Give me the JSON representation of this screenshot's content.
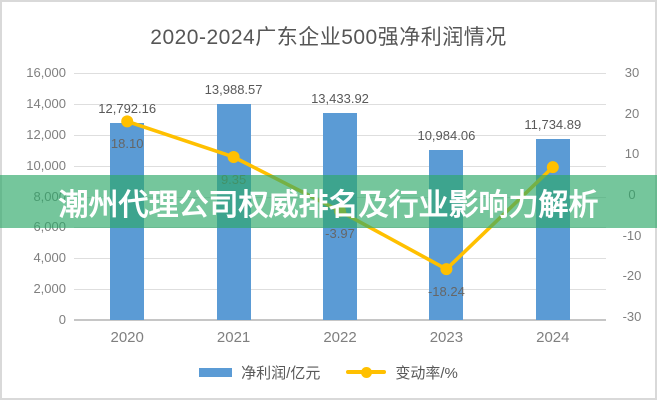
{
  "title": "2020-2024广东企业500强净利润情况",
  "banner": {
    "text": "潮州代理公司权威排名及行业影响力解析",
    "bg_color": "#2EA868",
    "bg_alpha": 0.66,
    "text_color": "#FFFFFF"
  },
  "legend": {
    "bar_label": "净利润/亿元",
    "line_label": "变动率/%"
  },
  "colors": {
    "bar": "#5B9BD5",
    "line": "#FFC000",
    "grid": "#DEDEDE",
    "axis_line": "#C6C6C6",
    "tick_label": "#7F7F7F",
    "value_label": "#595959",
    "title": "#565656"
  },
  "chart_data": {
    "type": "bar",
    "title": "2020-2024广东企业500强净利润情况",
    "categories": [
      "2020",
      "2021",
      "2022",
      "2023",
      "2024"
    ],
    "series": [
      {
        "name": "净利润/亿元",
        "type": "bar",
        "axis": "left",
        "color": "#5B9BD5",
        "values": [
          12792.16,
          13988.57,
          13433.92,
          10984.06,
          11734.89
        ],
        "labels": [
          "12,792.16",
          "13,988.57",
          "13,433.92",
          "10,984.06",
          "11,734.89"
        ]
      },
      {
        "name": "变动率/%",
        "type": "line",
        "axis": "right",
        "color": "#FFC000",
        "values": [
          18.1,
          9.35,
          -3.97,
          -18.24,
          6.84
        ],
        "labels": [
          "18.10",
          "9.35",
          "-3.97",
          "-18.24",
          ""
        ]
      }
    ],
    "left_axis": {
      "min": 0,
      "max": 16000,
      "step": 2000,
      "tick_labels": [
        "16,000",
        "14,000",
        "12,000",
        "10,000",
        "8,000",
        "6,000",
        "4,000",
        "2,000",
        "0"
      ]
    },
    "right_axis": {
      "min": -30,
      "max": 30,
      "step": 10,
      "tick_labels": [
        "30",
        "20",
        "10",
        "0",
        "-10",
        "-20",
        "-30"
      ]
    },
    "legend_position": "bottom",
    "grid": true
  }
}
